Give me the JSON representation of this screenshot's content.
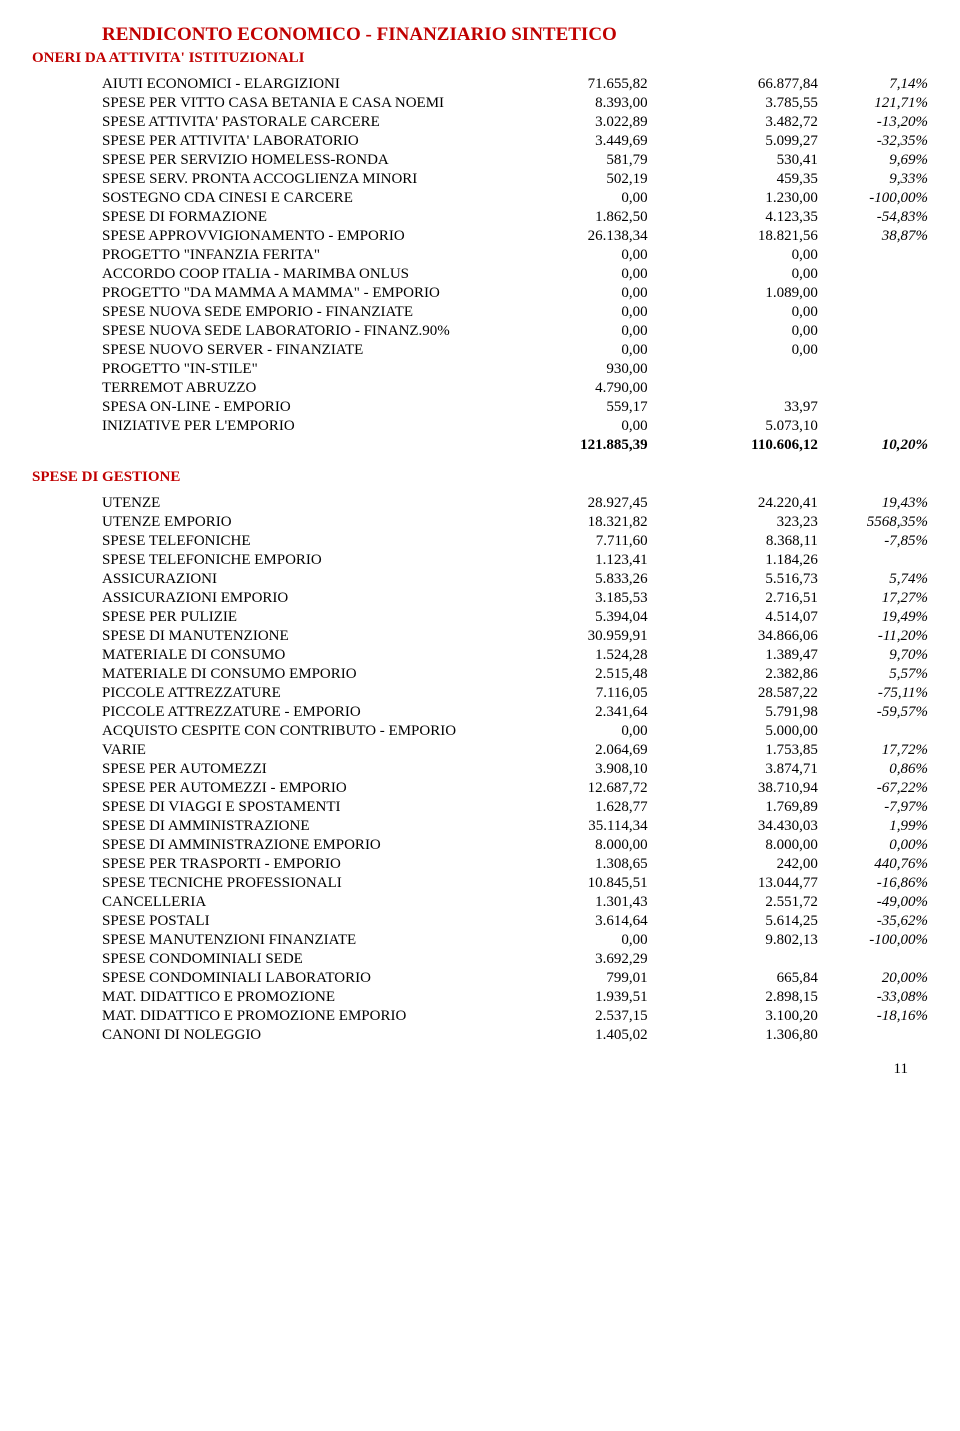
{
  "title": "RENDICONTO ECONOMICO - FINANZIARIO SINTETICO",
  "sections": [
    {
      "heading": "ONERI DA ATTIVITA' ISTITUZIONALI",
      "rows": [
        {
          "desc": "AIUTI ECONOMICI - ELARGIZIONI",
          "v1": "71.655,82",
          "v2": "66.877,84",
          "v3": "7,14%"
        },
        {
          "desc": "SPESE PER VITTO CASA BETANIA E CASA NOEMI",
          "v1": "8.393,00",
          "v2": "3.785,55",
          "v3": "121,71%"
        },
        {
          "desc": "SPESE ATTIVITA' PASTORALE CARCERE",
          "v1": "3.022,89",
          "v2": "3.482,72",
          "v3": "-13,20%"
        },
        {
          "desc": "SPESE PER ATTIVITA' LABORATORIO",
          "v1": "3.449,69",
          "v2": "5.099,27",
          "v3": "-32,35%"
        },
        {
          "desc": "SPESE PER SERVIZIO HOMELESS-RONDA",
          "v1": "581,79",
          "v2": "530,41",
          "v3": "9,69%"
        },
        {
          "desc": "SPESE SERV. PRONTA ACCOGLIENZA MINORI",
          "v1": "502,19",
          "v2": "459,35",
          "v3": "9,33%"
        },
        {
          "desc": "SOSTEGNO CDA CINESI E CARCERE",
          "v1": "0,00",
          "v2": "1.230,00",
          "v3": "-100,00%"
        },
        {
          "desc": "SPESE DI FORMAZIONE",
          "v1": "1.862,50",
          "v2": "4.123,35",
          "v3": "-54,83%"
        },
        {
          "desc": "SPESE APPROVVIGIONAMENTO - EMPORIO",
          "v1": "26.138,34",
          "v2": "18.821,56",
          "v3": "38,87%"
        },
        {
          "desc": "PROGETTO \"INFANZIA FERITA\"",
          "v1": "0,00",
          "v2": "0,00",
          "v3": ""
        },
        {
          "desc": "ACCORDO COOP ITALIA - MARIMBA ONLUS",
          "v1": "0,00",
          "v2": "0,00",
          "v3": ""
        },
        {
          "desc": "PROGETTO \"DA MAMMA A MAMMA\" - EMPORIO",
          "v1": "0,00",
          "v2": "1.089,00",
          "v3": ""
        },
        {
          "desc": "SPESE NUOVA SEDE EMPORIO - FINANZIATE",
          "v1": "0,00",
          "v2": "0,00",
          "v3": ""
        },
        {
          "desc": "SPESE NUOVA SEDE LABORATORIO - FINANZ.90%",
          "v1": "0,00",
          "v2": "0,00",
          "v3": ""
        },
        {
          "desc": "SPESE NUOVO SERVER - FINANZIATE",
          "v1": "0,00",
          "v2": "0,00",
          "v3": ""
        },
        {
          "desc": "PROGETTO \"IN-STILE\"",
          "v1": "930,00",
          "v2": "",
          "v3": ""
        },
        {
          "desc": "TERREMOT ABRUZZO",
          "v1": "4.790,00",
          "v2": "",
          "v3": ""
        },
        {
          "desc": "SPESA ON-LINE - EMPORIO",
          "v1": "559,17",
          "v2": "33,97",
          "v3": ""
        },
        {
          "desc": "INIZIATIVE PER L'EMPORIO",
          "v1": "0,00",
          "v2": "5.073,10",
          "v3": ""
        }
      ],
      "total": {
        "desc": "",
        "v1": "121.885,39",
        "v2": "110.606,12",
        "v3": "10,20%"
      }
    },
    {
      "heading": "SPESE DI GESTIONE",
      "rows": [
        {
          "desc": "UTENZE",
          "v1": "28.927,45",
          "v2": "24.220,41",
          "v3": "19,43%"
        },
        {
          "desc": "UTENZE EMPORIO",
          "v1": "18.321,82",
          "v2": "323,23",
          "v3": "5568,35%"
        },
        {
          "desc": "SPESE TELEFONICHE",
          "v1": "7.711,60",
          "v2": "8.368,11",
          "v3": "-7,85%"
        },
        {
          "desc": "SPESE TELEFONICHE EMPORIO",
          "v1": "1.123,41",
          "v2": "1.184,26",
          "v3": ""
        },
        {
          "desc": "ASSICURAZIONI",
          "v1": "5.833,26",
          "v2": "5.516,73",
          "v3": "5,74%"
        },
        {
          "desc": "ASSICURAZIONI EMPORIO",
          "v1": "3.185,53",
          "v2": "2.716,51",
          "v3": "17,27%"
        },
        {
          "desc": "SPESE PER PULIZIE",
          "v1": "5.394,04",
          "v2": "4.514,07",
          "v3": "19,49%"
        },
        {
          "desc": "SPESE DI MANUTENZIONE",
          "v1": "30.959,91",
          "v2": "34.866,06",
          "v3": "-11,20%"
        },
        {
          "desc": "MATERIALE DI CONSUMO",
          "v1": "1.524,28",
          "v2": "1.389,47",
          "v3": "9,70%"
        },
        {
          "desc": "MATERIALE DI CONSUMO EMPORIO",
          "v1": "2.515,48",
          "v2": "2.382,86",
          "v3": "5,57%"
        },
        {
          "desc": "PICCOLE ATTREZZATURE",
          "v1": "7.116,05",
          "v2": "28.587,22",
          "v3": "-75,11%"
        },
        {
          "desc": "PICCOLE ATTREZZATURE - EMPORIO",
          "v1": "2.341,64",
          "v2": "5.791,98",
          "v3": "-59,57%"
        },
        {
          "desc": "ACQUISTO CESPITE CON CONTRIBUTO - EMPORIO",
          "v1": "0,00",
          "v2": "5.000,00",
          "v3": ""
        },
        {
          "desc": "VARIE",
          "v1": "2.064,69",
          "v2": "1.753,85",
          "v3": "17,72%"
        },
        {
          "desc": "SPESE PER AUTOMEZZI",
          "v1": "3.908,10",
          "v2": "3.874,71",
          "v3": "0,86%"
        },
        {
          "desc": "SPESE PER AUTOMEZZI - EMPORIO",
          "v1": "12.687,72",
          "v2": "38.710,94",
          "v3": "-67,22%"
        },
        {
          "desc": "SPESE DI VIAGGI E SPOSTAMENTI",
          "v1": "1.628,77",
          "v2": "1.769,89",
          "v3": "-7,97%"
        },
        {
          "desc": "SPESE DI AMMINISTRAZIONE",
          "v1": "35.114,34",
          "v2": "34.430,03",
          "v3": "1,99%"
        },
        {
          "desc": "SPESE DI AMMINISTRAZIONE EMPORIO",
          "v1": "8.000,00",
          "v2": "8.000,00",
          "v3": "0,00%"
        },
        {
          "desc": "SPESE PER TRASPORTI - EMPORIO",
          "v1": "1.308,65",
          "v2": "242,00",
          "v3": "440,76%"
        },
        {
          "desc": "SPESE TECNICHE PROFESSIONALI",
          "v1": "10.845,51",
          "v2": "13.044,77",
          "v3": "-16,86%"
        },
        {
          "desc": "CANCELLERIA",
          "v1": "1.301,43",
          "v2": "2.551,72",
          "v3": "-49,00%"
        },
        {
          "desc": "SPESE POSTALI",
          "v1": "3.614,64",
          "v2": "5.614,25",
          "v3": "-35,62%"
        },
        {
          "desc": "SPESE MANUTENZIONI FINANZIATE",
          "v1": "0,00",
          "v2": "9.802,13",
          "v3": "-100,00%"
        },
        {
          "desc": "SPESE CONDOMINIALI SEDE",
          "v1": "3.692,29",
          "v2": "",
          "v3": ""
        },
        {
          "desc": "SPESE CONDOMINIALI LABORATORIO",
          "v1": "799,01",
          "v2": "665,84",
          "v3": "20,00%"
        },
        {
          "desc": "MAT. DIDATTICO E PROMOZIONE",
          "v1": "1.939,51",
          "v2": "2.898,15",
          "v3": "-33,08%"
        },
        {
          "desc": "MAT. DIDATTICO E PROMOZIONE EMPORIO",
          "v1": "2.537,15",
          "v2": "3.100,20",
          "v3": "-18,16%"
        },
        {
          "desc": "CANONI DI NOLEGGIO",
          "v1": "1.405,02",
          "v2": "1.306,80",
          "v3": ""
        }
      ]
    }
  ],
  "pageNumber": "11"
}
